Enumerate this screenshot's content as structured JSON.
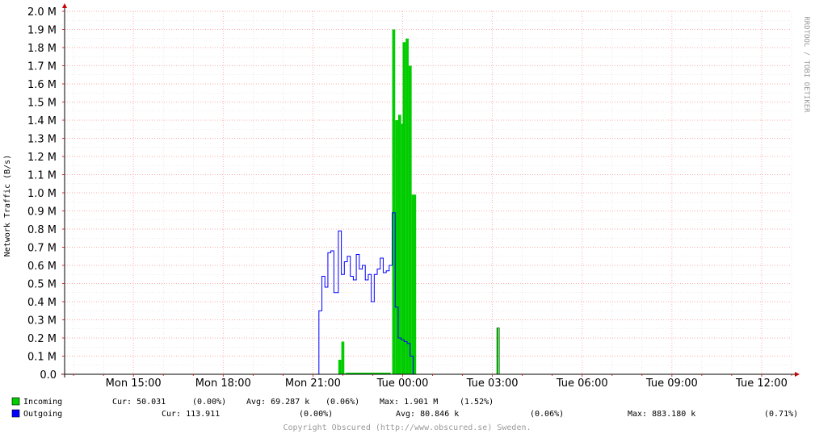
{
  "chart_data": {
    "type": "area",
    "ylabel": "Network Traffic (B/s)",
    "watermark": "RRDTOOL / TOBI OETIKER",
    "x_ticks": [
      "Mon 15:00",
      "Mon 18:00",
      "Mon 21:00",
      "Tue 00:00",
      "Tue 03:00",
      "Tue 06:00",
      "Tue 09:00",
      "Tue 12:00"
    ],
    "y_ticks": [
      "0.0",
      "0.1 M",
      "0.2 M",
      "0.3 M",
      "0.4 M",
      "0.5 M",
      "0.6 M",
      "0.7 M",
      "0.8 M",
      "0.9 M",
      "1.0 M",
      "1.1 M",
      "1.2 M",
      "1.3 M",
      "1.4 M",
      "1.5 M",
      "1.6 M",
      "1.7 M",
      "1.8 M",
      "1.9 M",
      "2.0 M"
    ],
    "ylim": [
      0,
      2000000
    ],
    "xlim_hours": [
      12.7,
      37.0
    ],
    "grid": true,
    "colors": {
      "incoming": "#00cc00",
      "outgoing": "#0000ff",
      "grid_major": "#ff9999",
      "grid_minor": "#dddddd",
      "axis": "#cc0000"
    },
    "series": [
      {
        "name": "Incoming",
        "style": "area",
        "points": [
          [
            21.0,
            0
          ],
          [
            23.5,
            0
          ],
          [
            21.85,
            80000
          ],
          [
            21.95,
            180000
          ],
          [
            22.05,
            5000
          ],
          [
            23.5,
            0
          ],
          [
            23.65,
            1900000
          ],
          [
            23.75,
            1400000
          ],
          [
            23.85,
            1430000
          ],
          [
            23.95,
            1380000
          ],
          [
            24.0,
            1830000
          ],
          [
            24.1,
            1850000
          ],
          [
            24.2,
            1700000
          ],
          [
            24.3,
            990000
          ],
          [
            24.45,
            0
          ],
          [
            27.15,
            255000
          ],
          [
            27.2,
            0
          ]
        ]
      },
      {
        "name": "Outgoing",
        "style": "line",
        "points": [
          [
            21.0,
            0
          ],
          [
            21.2,
            350000
          ],
          [
            21.3,
            540000
          ],
          [
            21.4,
            480000
          ],
          [
            21.5,
            670000
          ],
          [
            21.6,
            680000
          ],
          [
            21.7,
            450000
          ],
          [
            21.85,
            790000
          ],
          [
            21.95,
            550000
          ],
          [
            22.05,
            620000
          ],
          [
            22.15,
            650000
          ],
          [
            22.25,
            540000
          ],
          [
            22.35,
            520000
          ],
          [
            22.45,
            660000
          ],
          [
            22.55,
            580000
          ],
          [
            22.65,
            600000
          ],
          [
            22.75,
            520000
          ],
          [
            22.85,
            550000
          ],
          [
            22.95,
            400000
          ],
          [
            23.05,
            550000
          ],
          [
            23.15,
            580000
          ],
          [
            23.25,
            640000
          ],
          [
            23.35,
            560000
          ],
          [
            23.45,
            570000
          ],
          [
            23.55,
            600000
          ],
          [
            23.65,
            890000
          ],
          [
            23.75,
            370000
          ],
          [
            23.85,
            200000
          ],
          [
            23.95,
            190000
          ],
          [
            24.05,
            180000
          ],
          [
            24.15,
            170000
          ],
          [
            24.25,
            100000
          ],
          [
            24.35,
            0
          ]
        ]
      }
    ]
  },
  "legend": [
    {
      "name": "Incoming",
      "color": "#00cc00",
      "cur": "Cur: 50.031",
      "cur_pct": "(0.00%)",
      "avg": "Avg: 69.287 k",
      "avg_pct": "(0.06%)",
      "max": "Max: 1.901 M",
      "max_pct": "(1.52%)"
    },
    {
      "name": "Outgoing",
      "color": "#0000ff",
      "cur": "Cur: 113.911",
      "cur_pct": "(0.00%)",
      "avg": "Avg: 80.846 k",
      "avg_pct": "(0.06%)",
      "max": "Max: 883.180 k",
      "max_pct": "(0.71%)"
    }
  ],
  "footer": "Copyright Obscured (http://www.obscured.se) Sweden."
}
